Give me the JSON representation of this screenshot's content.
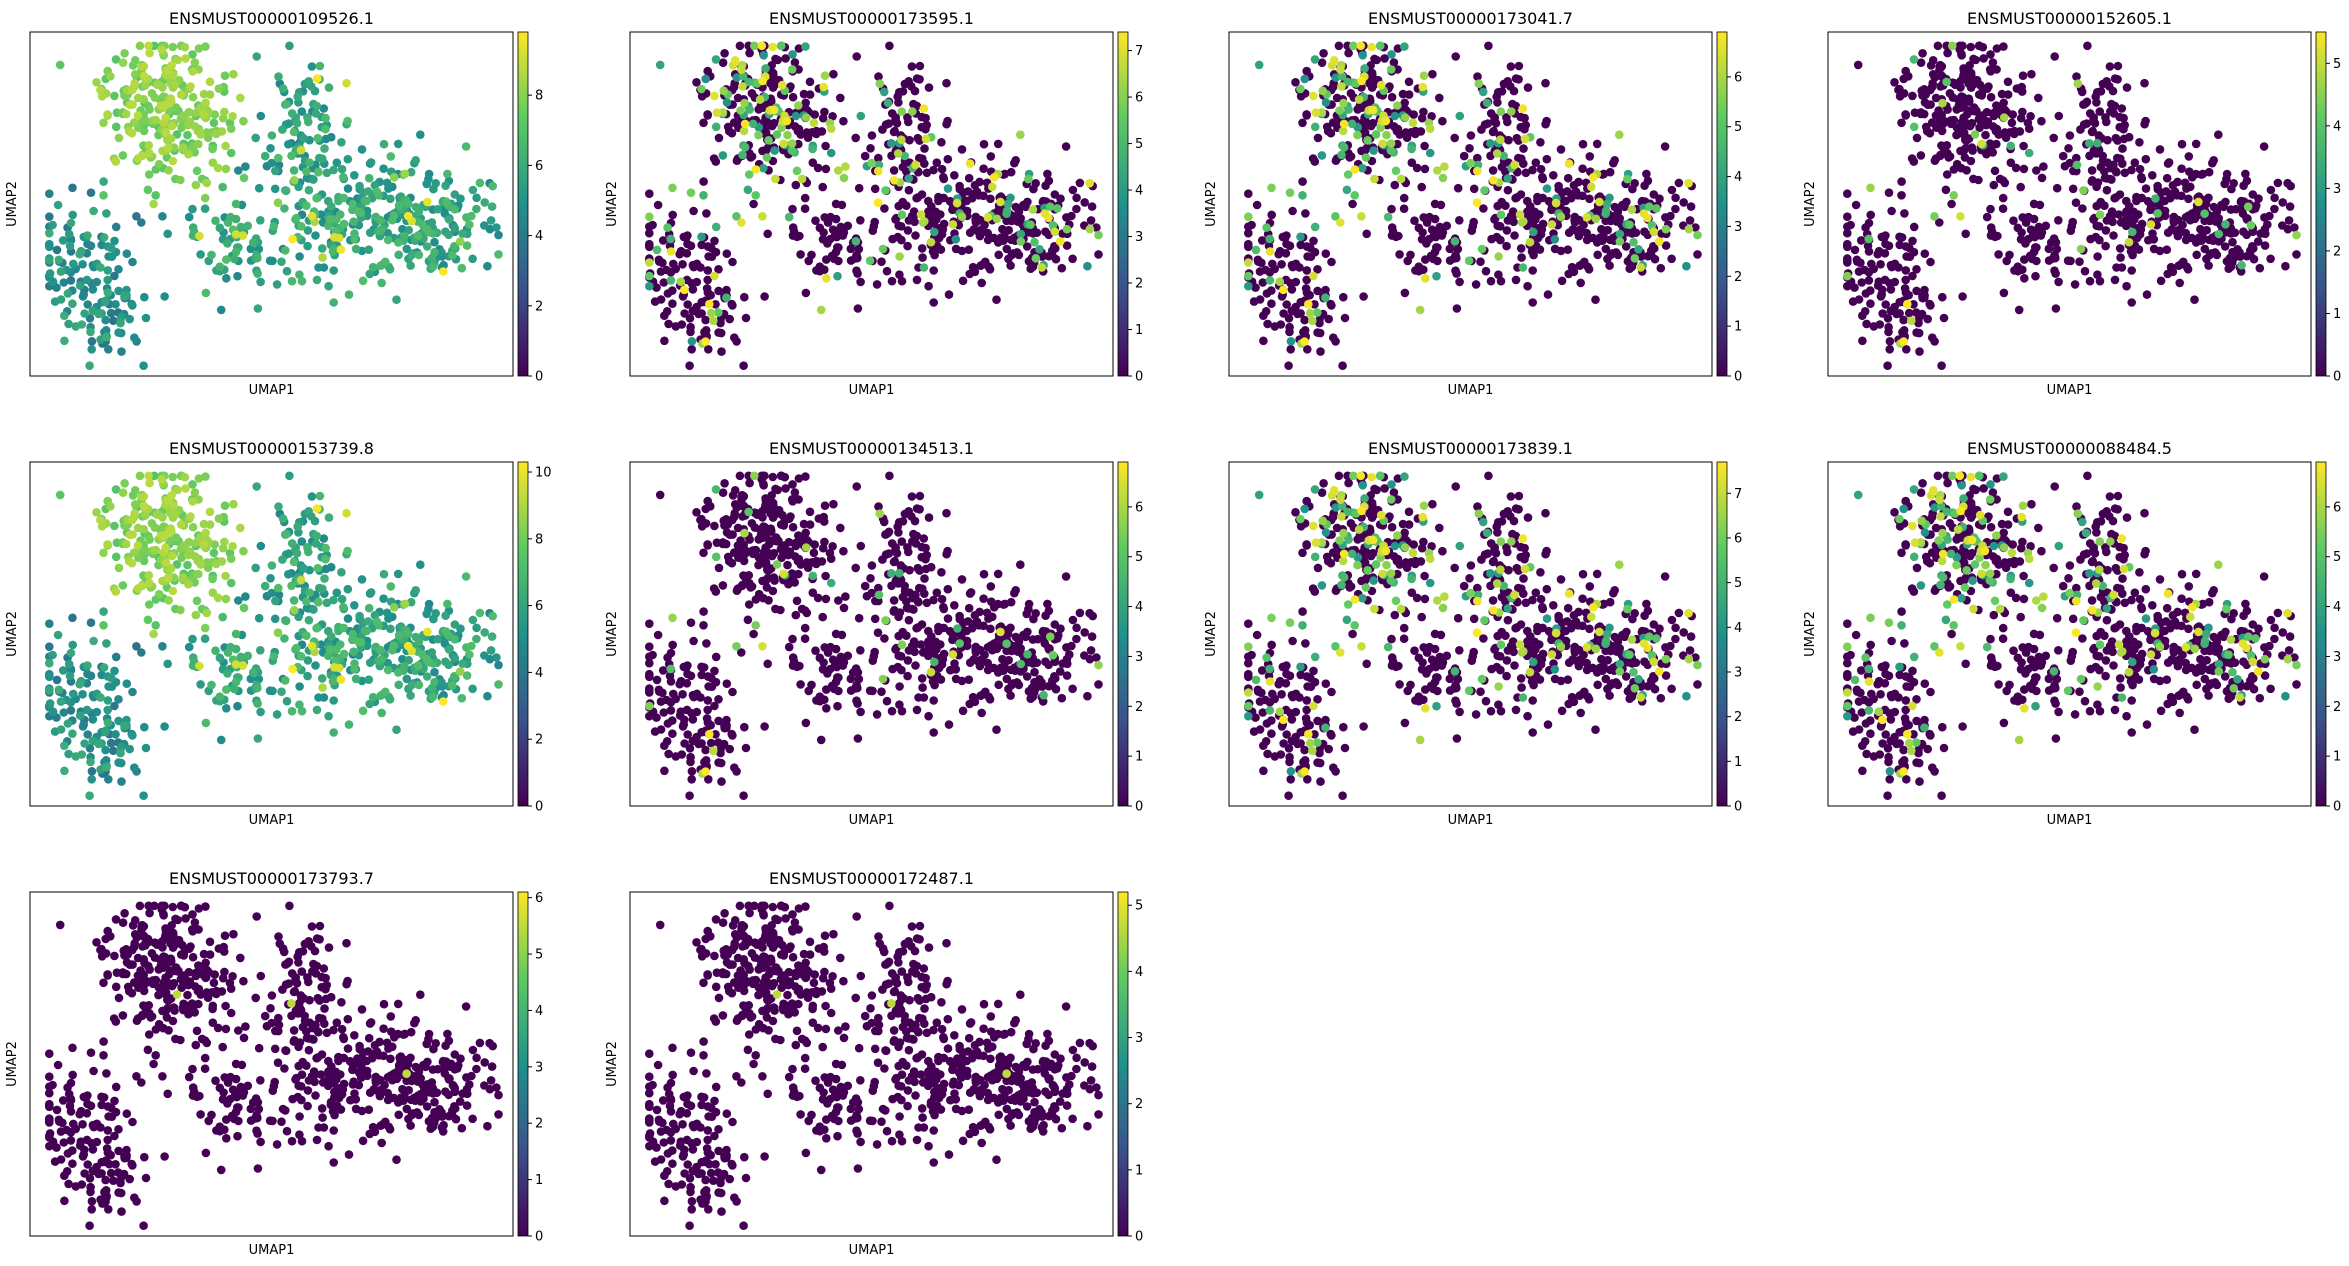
{
  "figure": {
    "colormap": "viridis",
    "colormap_stops": [
      "#440154",
      "#3b528b",
      "#21918c",
      "#5ec962",
      "#fde725"
    ],
    "background": "#ffffff"
  },
  "chart_data": [
    {
      "type": "scatter",
      "title": "ENSMUST00000109526.1",
      "xlabel": "UMAP1",
      "ylabel": "UMAP2",
      "colorbar": {
        "min": 0,
        "max": 9.8,
        "ticks": [
          0,
          2,
          4,
          6,
          8
        ]
      },
      "grid": false,
      "expression": "broad-high"
    },
    {
      "type": "scatter",
      "title": "ENSMUST00000173595.1",
      "xlabel": "UMAP1",
      "ylabel": "UMAP2",
      "colorbar": {
        "min": 0,
        "max": 7.4,
        "ticks": [
          0,
          1,
          2,
          3,
          4,
          5,
          6,
          7
        ]
      },
      "grid": false,
      "expression": "moderate"
    },
    {
      "type": "scatter",
      "title": "ENSMUST00000173041.7",
      "xlabel": "UMAP1",
      "ylabel": "UMAP2",
      "colorbar": {
        "min": 0,
        "max": 6.9,
        "ticks": [
          0,
          1,
          2,
          3,
          4,
          5,
          6
        ]
      },
      "grid": false,
      "expression": "moderate"
    },
    {
      "type": "scatter",
      "title": "ENSMUST00000152605.1",
      "xlabel": "UMAP1",
      "ylabel": "UMAP2",
      "colorbar": {
        "min": 0,
        "max": 5.5,
        "ticks": [
          0,
          1,
          2,
          3,
          4,
          5
        ]
      },
      "grid": false,
      "expression": "sparse"
    },
    {
      "type": "scatter",
      "title": "ENSMUST00000153739.8",
      "xlabel": "UMAP1",
      "ylabel": "UMAP2",
      "colorbar": {
        "min": 0,
        "max": 10.3,
        "ticks": [
          0,
          2,
          4,
          6,
          8,
          10
        ]
      },
      "grid": false,
      "expression": "broad-high"
    },
    {
      "type": "scatter",
      "title": "ENSMUST00000134513.1",
      "xlabel": "UMAP1",
      "ylabel": "UMAP2",
      "colorbar": {
        "min": 0,
        "max": 6.9,
        "ticks": [
          0,
          1,
          2,
          3,
          4,
          5,
          6
        ]
      },
      "grid": false,
      "expression": "sparse"
    },
    {
      "type": "scatter",
      "title": "ENSMUST00000173839.1",
      "xlabel": "UMAP1",
      "ylabel": "UMAP2",
      "colorbar": {
        "min": 0,
        "max": 7.7,
        "ticks": [
          0,
          1,
          2,
          3,
          4,
          5,
          6,
          7
        ]
      },
      "grid": false,
      "expression": "moderate"
    },
    {
      "type": "scatter",
      "title": "ENSMUST00000088484.5",
      "xlabel": "UMAP1",
      "ylabel": "UMAP2",
      "colorbar": {
        "min": 0,
        "max": 6.9,
        "ticks": [
          0,
          1,
          2,
          3,
          4,
          5,
          6
        ]
      },
      "grid": false,
      "expression": "moderate"
    },
    {
      "type": "scatter",
      "title": "ENSMUST00000173793.7",
      "xlabel": "UMAP1",
      "ylabel": "UMAP2",
      "colorbar": {
        "min": 0,
        "max": 6.1,
        "ticks": [
          0,
          1,
          2,
          3,
          4,
          5,
          6
        ]
      },
      "grid": false,
      "expression": "very-sparse"
    },
    {
      "type": "scatter",
      "title": "ENSMUST00000172487.1",
      "xlabel": "UMAP1",
      "ylabel": "UMAP2",
      "colorbar": {
        "min": 0,
        "max": 5.2,
        "ticks": [
          0,
          1,
          2,
          3,
          4,
          5
        ]
      },
      "grid": false,
      "expression": "very-sparse"
    }
  ]
}
